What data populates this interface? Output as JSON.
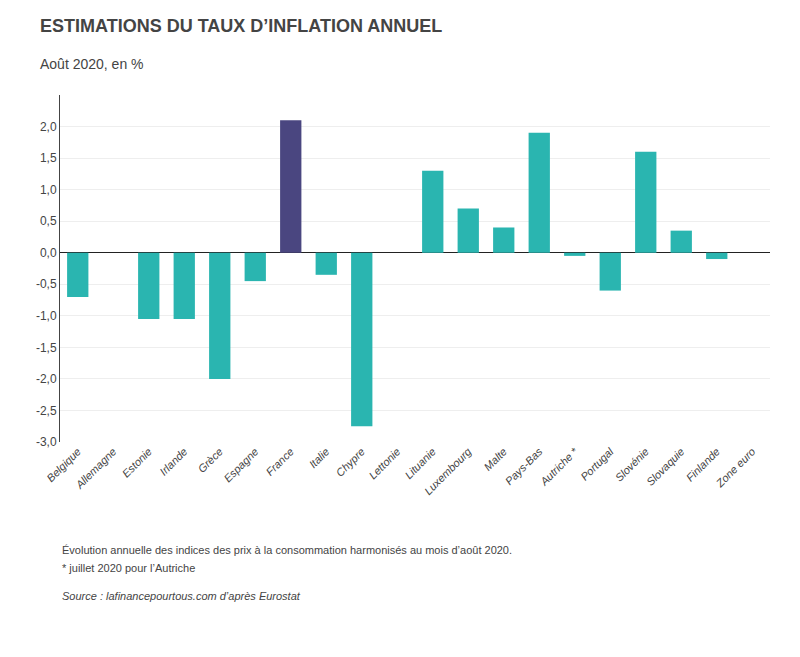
{
  "chart_data": {
    "type": "bar",
    "title": "ESTIMATIONS DU TAUX D’INFLATION ANNUEL",
    "subtitle": "Août 2020, en %",
    "categories": [
      "Belgique",
      "Allemagne",
      "Estonie",
      "Irlande",
      "Grèce",
      "Espagne",
      "France",
      "Italie",
      "Chypre",
      "Lettonie",
      "Lituanie",
      "Luxembourg",
      "Malte",
      "Pays-Bas",
      "Autriche *",
      "Portugal",
      "Slovénie",
      "Slovaquie",
      "Finlande",
      "Zone euro"
    ],
    "values": [
      -0.7,
      0.0,
      -1.05,
      -1.05,
      -2.0,
      -0.45,
      2.1,
      -0.35,
      -2.75,
      0.0,
      1.3,
      0.7,
      0.4,
      1.9,
      -0.05,
      -0.6,
      1.6,
      0.35,
      -0.1,
      0.0
    ],
    "colors": [
      "#2ab5b0",
      "#2ab5b0",
      "#2ab5b0",
      "#2ab5b0",
      "#2ab5b0",
      "#2ab5b0",
      "#4a4680",
      "#2ab5b0",
      "#2ab5b0",
      "#2ab5b0",
      "#2ab5b0",
      "#2ab5b0",
      "#2ab5b0",
      "#2ab5b0",
      "#2ab5b0",
      "#2ab5b0",
      "#2ab5b0",
      "#2ab5b0",
      "#2ab5b0",
      "#4a4680"
    ],
    "ylim": [
      -3.0,
      2.5
    ],
    "yticks": [
      {
        "value": -3.0,
        "label": "-3,0"
      },
      {
        "value": -2.5,
        "label": "-2,5"
      },
      {
        "value": -2.0,
        "label": "-2,0"
      },
      {
        "value": -1.5,
        "label": "-1,5"
      },
      {
        "value": -1.0,
        "label": "-1,0"
      },
      {
        "value": -0.5,
        "label": "-0,5"
      },
      {
        "value": 0.0,
        "label": "0,0"
      },
      {
        "value": 0.5,
        "label": "0,5"
      },
      {
        "value": 1.0,
        "label": "1,0"
      },
      {
        "value": 1.5,
        "label": "1,5"
      },
      {
        "value": 2.0,
        "label": "2,0"
      }
    ],
    "grid": true,
    "annotations": [
      "Évolution annuelle des indices des prix à la consommation harmonisés au mois d’août 2020.",
      "* juillet 2020 pour l’Autriche",
      "Source : lafinancepourtous.com d’après Eurostat"
    ]
  }
}
